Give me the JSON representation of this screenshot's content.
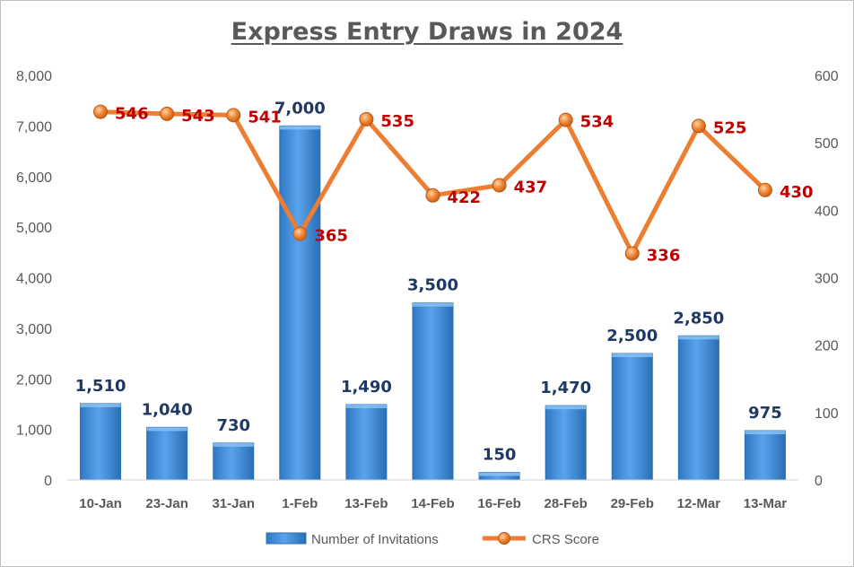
{
  "chart_data": {
    "type": "bar",
    "title": "Express Entry Draws in 2024",
    "categories": [
      "10-Jan",
      "23-Jan",
      "31-Jan",
      "1-Feb",
      "13-Feb",
      "14-Feb",
      "16-Feb",
      "28-Feb",
      "29-Feb",
      "12-Mar",
      "13-Mar"
    ],
    "series": [
      {
        "name": "Number of Invitations",
        "type": "bar",
        "axis": "left",
        "values": [
          1510,
          1040,
          730,
          7000,
          1490,
          3500,
          150,
          1470,
          2500,
          2850,
          975
        ],
        "labels": [
          "1,510",
          "1,040",
          "730",
          "7,000",
          "1,490",
          "3,500",
          "150",
          "1,470",
          "2,500",
          "2,850",
          "975"
        ]
      },
      {
        "name": "CRS Score",
        "type": "line",
        "axis": "right",
        "values": [
          546,
          543,
          541,
          365,
          535,
          422,
          437,
          534,
          336,
          525,
          430
        ],
        "labels": [
          "546",
          "543",
          "541",
          "365",
          "535",
          "422",
          "437",
          "534",
          "336",
          "525",
          "430"
        ]
      }
    ],
    "y_left": {
      "ylim": [
        0,
        8000
      ],
      "ticks": [
        0,
        1000,
        2000,
        3000,
        4000,
        5000,
        6000,
        7000,
        8000
      ],
      "tick_labels": [
        "0",
        "1,000",
        "2,000",
        "3,000",
        "4,000",
        "5,000",
        "6,000",
        "7,000",
        "8,000"
      ]
    },
    "y_right": {
      "ylim": [
        0,
        600
      ],
      "ticks": [
        0,
        100,
        200,
        300,
        400,
        500,
        600
      ],
      "tick_labels": [
        "0",
        "100",
        "200",
        "300",
        "400",
        "500",
        "600"
      ]
    },
    "grid": false,
    "legend": "bottom",
    "colors": {
      "bar": "#3a87d6",
      "bar_edge": "#2a6fb5",
      "line": "#ed7d31",
      "marker": "#e07020",
      "bar_label": "#1f3864",
      "line_label": "#c00000",
      "axis_text": "#595959"
    }
  }
}
